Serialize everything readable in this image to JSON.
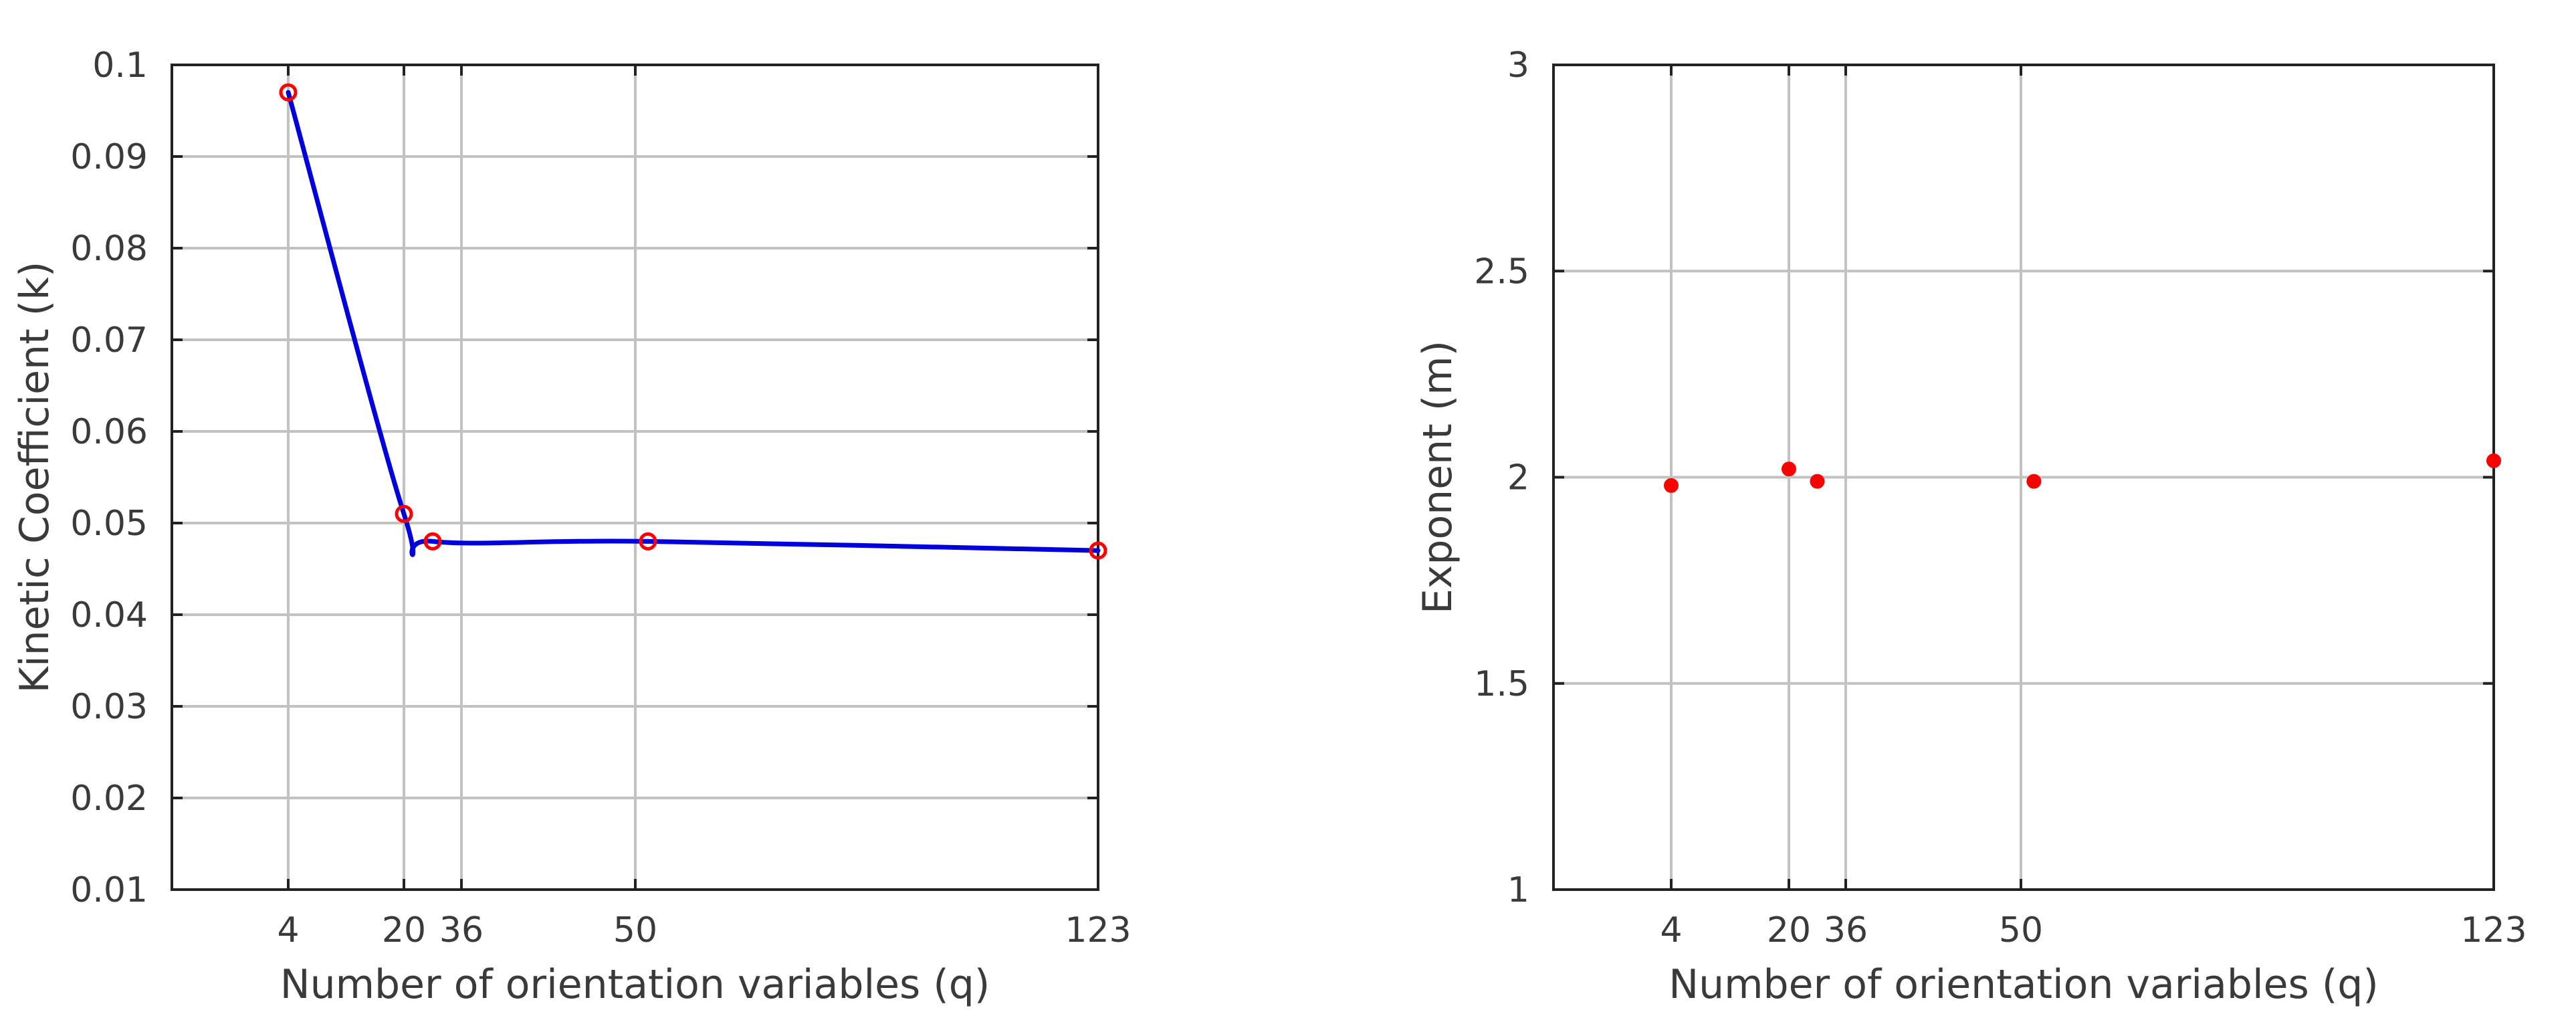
{
  "chart_data": [
    {
      "type": "line",
      "title": "",
      "xlabel": "Number of orientation variables (q)",
      "ylabel": "Kinetic Coefficient (k)",
      "xlim": [
        -9,
        124
      ],
      "ylim": [
        0.01,
        0.1
      ],
      "xticks": [
        4,
        20,
        36,
        50,
        123
      ],
      "xtick_labels": [
        "4",
        "20",
        "36",
        "50",
        "123"
      ],
      "yticks": [
        0.01,
        0.02,
        0.03,
        0.04,
        0.05,
        0.06,
        0.07,
        0.08,
        0.09,
        0.1
      ],
      "ytick_labels": [
        "0.01",
        "0.02",
        "0.03",
        "0.04",
        "0.05",
        "0.06",
        "0.07",
        "0.08",
        "0.09",
        "0.1"
      ],
      "grid": true,
      "series": [
        {
          "style": "markers",
          "marker": "open-circle",
          "color": "#ff0000",
          "x": [
            4,
            20,
            28,
            52,
            123
          ],
          "y": [
            0.097,
            0.051,
            0.048,
            0.048,
            0.047
          ]
        },
        {
          "style": "smooth-line",
          "color": "#0000dd",
          "x": [
            4,
            20,
            28,
            52,
            123
          ],
          "y": [
            0.097,
            0.051,
            0.048,
            0.048,
            0.047
          ]
        }
      ]
    },
    {
      "type": "scatter",
      "title": "",
      "xlabel": "Number of orientation variables (q)",
      "ylabel": "Exponent (m)",
      "xlim": [
        -9,
        124
      ],
      "ylim": [
        1,
        3
      ],
      "xticks": [
        4,
        20,
        36,
        50,
        123
      ],
      "xtick_labels": [
        "4",
        "20",
        "36",
        "50",
        "123"
      ],
      "yticks": [
        1,
        1.5,
        2,
        2.5,
        3
      ],
      "ytick_labels": [
        "1",
        "1.5",
        "2",
        "2.5",
        "3"
      ],
      "grid": true,
      "series": [
        {
          "style": "markers",
          "marker": "filled-dot",
          "color": "#ff0000",
          "x": [
            4,
            20,
            28,
            52,
            123
          ],
          "y": [
            1.98,
            2.02,
            1.99,
            1.99,
            2.04
          ]
        }
      ]
    }
  ]
}
